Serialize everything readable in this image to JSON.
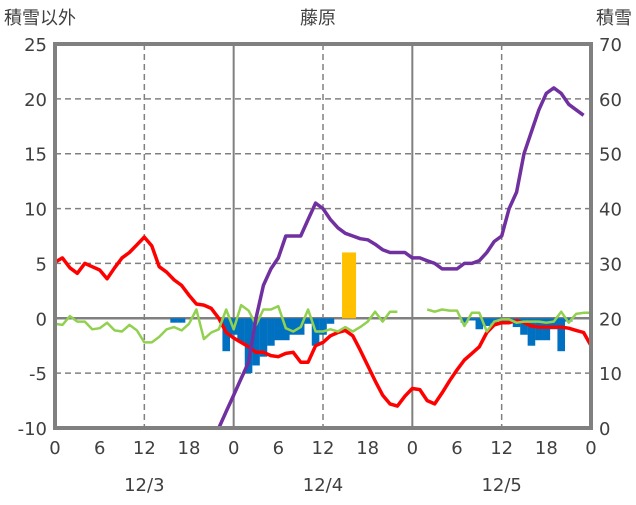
{
  "chart_data": {
    "type": "line",
    "title": "藤原",
    "ylabel_left": "積雪以外",
    "ylabel_right": "積雪",
    "ylim_left": [
      -10,
      25
    ],
    "ylim_right": [
      0,
      70
    ],
    "yticks_left": [
      "25",
      "20",
      "15",
      "10",
      "5",
      "0",
      "-5",
      "-10"
    ],
    "yticks_right": [
      "70",
      "60",
      "50",
      "40",
      "30",
      "20",
      "10",
      "0"
    ],
    "xlim_hours": [
      0,
      72
    ],
    "xticks": [
      {
        "hour": 0,
        "label": "0"
      },
      {
        "hour": 6,
        "label": "6"
      },
      {
        "hour": 12,
        "label": "12"
      },
      {
        "hour": 18,
        "label": "18"
      },
      {
        "hour": 24,
        "label": "0"
      },
      {
        "hour": 30,
        "label": "6"
      },
      {
        "hour": 36,
        "label": "12"
      },
      {
        "hour": 42,
        "label": "18"
      },
      {
        "hour": 48,
        "label": "0"
      },
      {
        "hour": 54,
        "label": "6"
      },
      {
        "hour": 60,
        "label": "12"
      },
      {
        "hour": 66,
        "label": "18"
      },
      {
        "hour": 72,
        "label": "0"
      }
    ],
    "days": [
      {
        "hour": 12,
        "label": "12/3"
      },
      {
        "hour": 36,
        "label": "12/4"
      },
      {
        "hour": 60,
        "label": "12/5"
      }
    ],
    "grid": true,
    "colors": {
      "temperature": "#ff0000",
      "snow_depth": "#7030a0",
      "wind": "#92d050",
      "snow_change": "#0070c0",
      "precip": "#ffc000",
      "axis": "#808080"
    },
    "series": [
      {
        "name": "temperature",
        "axis": "left",
        "type": "line",
        "values": [
          5.1,
          5.5,
          4.6,
          4.1,
          5.0,
          4.7,
          4.4,
          3.6,
          4.6,
          5.5,
          6.0,
          6.7,
          7.4,
          6.6,
          4.7,
          4.2,
          3.5,
          3.0,
          2.1,
          1.3,
          1.2,
          0.9,
          0,
          -1.3,
          -1.8,
          -2.2,
          -2.6,
          -3.1,
          -3.1,
          -3.4,
          -3.5,
          -3.2,
          -3.1,
          -4.0,
          -4.0,
          -2.5,
          -2.2,
          -1.6,
          -1.3,
          -1.1,
          -1.6,
          -2.9,
          -4.3,
          -5.7,
          -7.0,
          -7.8,
          -8.0,
          -7.1,
          -6.4,
          -6.5,
          -7.5,
          -7.8,
          -6.8,
          -5.7,
          -4.7,
          -3.8,
          -3.2,
          -2.6,
          -1.3,
          -0.6,
          -0.4,
          -0.4,
          -0.2,
          -0.4,
          -0.7,
          -0.8,
          -0.8,
          -0.8,
          -0.8,
          -0.9,
          -1.1,
          -1.3,
          -2.5
        ]
      },
      {
        "name": "wind",
        "axis": "left",
        "type": "line",
        "values": [
          -0.5,
          -0.6,
          0.2,
          -0.3,
          -0.3,
          -1.0,
          -0.9,
          -0.4,
          -1.1,
          -1.2,
          -0.6,
          -1.1,
          -2.2,
          -2.2,
          -1.7,
          -1.0,
          -0.8,
          -1.1,
          -0.5,
          0.8,
          -1.9,
          -1.3,
          -1.0,
          0.8,
          -1.0,
          1.2,
          0.7,
          -0.6,
          0.8,
          0.8,
          1.1,
          -0.9,
          -1.2,
          -0.8,
          0.8,
          -1.2,
          -1.2,
          -1.0,
          -1.2,
          -0.8,
          -1.2,
          -0.8,
          -0.3,
          0.6,
          -0.3,
          0.6,
          0.6,
          null,
          null,
          null,
          0.8,
          0.6,
          0.8,
          0.7,
          0.7,
          -0.7,
          0.5,
          0.5,
          -1.2,
          -0.3,
          -0.1,
          -0.1,
          -0.4,
          -0.3,
          -0.3,
          -0.3,
          -0.4,
          -0.3,
          0.6,
          -0.4,
          0.4,
          0.5,
          0.5
        ]
      },
      {
        "name": "snow_depth",
        "axis": "right",
        "type": "line",
        "values": [
          0,
          0,
          0,
          0,
          0,
          0,
          0,
          0,
          0,
          0,
          0,
          0,
          0,
          0,
          0,
          0,
          0,
          0,
          0,
          0,
          0,
          0,
          0,
          3,
          6,
          9,
          12,
          20,
          26,
          29,
          31,
          35,
          35,
          35,
          38,
          41,
          40,
          38,
          36.5,
          35.5,
          35,
          34.5,
          34.3,
          33.5,
          32.5,
          32,
          32,
          32,
          31,
          31,
          30.5,
          30,
          29,
          29,
          29,
          30,
          30,
          30.5,
          32,
          34,
          35,
          40,
          43,
          50,
          54,
          58,
          61,
          62,
          61,
          59,
          58,
          57,
          null
        ]
      },
      {
        "name": "snow_change",
        "axis": "left",
        "type": "bar",
        "points": [
          [
            16,
            -0.4
          ],
          [
            17,
            -0.4
          ],
          [
            23,
            -3.0
          ],
          [
            24,
            -1.5
          ],
          [
            25,
            -2.2
          ],
          [
            26,
            -5.0
          ],
          [
            27,
            -4.3
          ],
          [
            28,
            -3.5
          ],
          [
            29,
            -2.5
          ],
          [
            30,
            -2.0
          ],
          [
            31,
            -2.0
          ],
          [
            32,
            -1.5
          ],
          [
            33,
            -1.5
          ],
          [
            34,
            -0.5
          ],
          [
            35,
            -2.5
          ],
          [
            36,
            -1.5
          ],
          [
            37,
            -0.5
          ],
          [
            55,
            -0.4
          ],
          [
            56,
            -0.2
          ],
          [
            57,
            -1.0
          ],
          [
            58,
            -0.7
          ],
          [
            59,
            -0.5
          ],
          [
            60,
            -0.3
          ],
          [
            61,
            -0.3
          ],
          [
            62,
            -0.8
          ],
          [
            63,
            -1.5
          ],
          [
            64,
            -2.5
          ],
          [
            65,
            -2.0
          ],
          [
            66,
            -2.0
          ],
          [
            67,
            -1.0
          ],
          [
            68,
            -3.0
          ],
          [
            69,
            -0.3
          ]
        ]
      },
      {
        "name": "precip",
        "axis": "left",
        "type": "bar",
        "points": [
          [
            39.5,
            6.0
          ]
        ]
      }
    ]
  }
}
